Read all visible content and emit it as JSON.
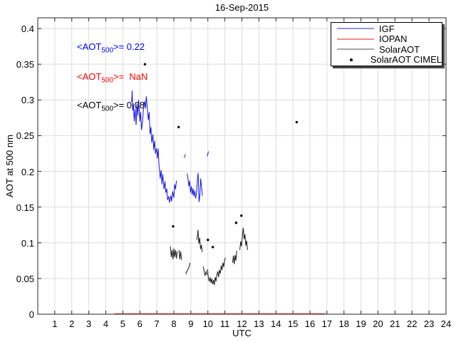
{
  "title": "16-Sep-2015",
  "xlabel": "UTC",
  "ylabel": "AOT at 500 nm",
  "annotations": [
    {
      "name": "igf-mean",
      "before": "<AOT",
      "sub": "500",
      "after": ">= 0.22",
      "color": "#0000ff"
    },
    {
      "name": "iopan-mean",
      "before": "<AOT",
      "sub": "500",
      "after": ">=  NaN",
      "color": "#ff0000"
    },
    {
      "name": "solar-mean",
      "before": "<AOT",
      "sub": "500",
      "after": ">= 0.08",
      "color": "#000000"
    }
  ],
  "legend": {
    "entries": [
      {
        "label": "IGF",
        "type": "line",
        "sample_color": "#9196f0"
      },
      {
        "label": "IOPAN",
        "type": "line",
        "sample_color": "#ef8f8f"
      },
      {
        "label": "SolarAOT",
        "type": "line",
        "sample_color": "#a8a8a8"
      },
      {
        "label": "SolarAOT CIMEL",
        "type": "marker",
        "sample_color": "#000000"
      }
    ]
  },
  "chart_data": {
    "type": "line",
    "title": "16-Sep-2015",
    "xlabel": "UTC",
    "ylabel": "AOT at 500 nm",
    "xlim": [
      0,
      24
    ],
    "ylim": [
      0,
      0.415
    ],
    "grid": true,
    "grid_color": "#dcdcdc",
    "axis_color": "#262626",
    "xticks": [
      1,
      2,
      3,
      4,
      5,
      6,
      7,
      8,
      9,
      10,
      11,
      12,
      13,
      14,
      15,
      16,
      17,
      18,
      19,
      20,
      21,
      22,
      23,
      24
    ],
    "yticks": [
      0,
      0.05,
      0.1,
      0.15,
      0.2,
      0.25,
      0.3,
      0.35,
      0.4
    ],
    "ytick_labels": [
      "0",
      "0.05",
      "0.1",
      "0.15",
      "0.2",
      "0.25",
      "0.3",
      "0.35",
      "0.4"
    ],
    "series": [
      {
        "name": "IGF",
        "type": "line",
        "color": "#1414e6",
        "mean_aot_500": 0.22,
        "segments": [
          [
            [
              5.52,
              0.297
            ],
            [
              5.55,
              0.313
            ],
            [
              5.58,
              0.285
            ],
            [
              5.62,
              0.295
            ],
            [
              5.67,
              0.27
            ],
            [
              5.72,
              0.288
            ],
            [
              5.78,
              0.265
            ],
            [
              5.83,
              0.295
            ],
            [
              5.88,
              0.278
            ],
            [
              5.93,
              0.3
            ],
            [
              6.0,
              0.27
            ],
            [
              6.05,
              0.283
            ],
            [
              6.1,
              0.258
            ],
            [
              6.17,
              0.272
            ],
            [
              6.22,
              0.29
            ],
            [
              6.28,
              0.298
            ],
            [
              6.33,
              0.288
            ],
            [
              6.38,
              0.305
            ],
            [
              6.45,
              0.285
            ],
            [
              6.5,
              0.272
            ],
            [
              6.55,
              0.283
            ],
            [
              6.6,
              0.252
            ],
            [
              6.65,
              0.262
            ],
            [
              6.7,
              0.24
            ],
            [
              6.77,
              0.252
            ],
            [
              6.82,
              0.23
            ],
            [
              6.87,
              0.243
            ],
            [
              6.92,
              0.225
            ],
            [
              6.98,
              0.232
            ],
            [
              7.03,
              0.218
            ],
            [
              7.08,
              0.232
            ],
            [
              7.13,
              0.208
            ],
            [
              7.2,
              0.19
            ],
            [
              7.25,
              0.202
            ],
            [
              7.3,
              0.182
            ],
            [
              7.35,
              0.196
            ],
            [
              7.42,
              0.175
            ],
            [
              7.48,
              0.186
            ],
            [
              7.53,
              0.17
            ],
            [
              7.58,
              0.176
            ],
            [
              7.63,
              0.16
            ],
            [
              7.7,
              0.165
            ],
            [
              7.75,
              0.156
            ],
            [
              7.82,
              0.166
            ],
            [
              7.87,
              0.158
            ],
            [
              7.93,
              0.172
            ],
            [
              8.0,
              0.163
            ],
            [
              8.05,
              0.182
            ],
            [
              8.1,
              0.175
            ],
            [
              8.15,
              0.187
            ]
          ],
          [
            [
              8.78,
              0.197
            ],
            [
              8.83,
              0.19
            ],
            [
              8.88,
              0.179
            ],
            [
              8.93,
              0.187
            ],
            [
              8.98,
              0.17
            ],
            [
              9.03,
              0.179
            ],
            [
              9.08,
              0.167
            ],
            [
              9.13,
              0.176
            ],
            [
              9.18,
              0.165
            ],
            [
              9.23,
              0.173
            ],
            [
              9.28,
              0.162
            ],
            [
              9.33,
              0.17
            ],
            [
              9.38,
              0.186
            ],
            [
              9.43,
              0.198
            ],
            [
              9.48,
              0.157
            ],
            [
              9.53,
              0.166
            ],
            [
              9.58,
              0.19
            ],
            [
              9.63,
              0.177
            ],
            [
              9.68,
              0.166
            ]
          ],
          [
            [
              8.6,
              0.219
            ],
            [
              8.68,
              0.224
            ]
          ],
          [
            [
              9.97,
              0.221
            ],
            [
              10.03,
              0.228
            ]
          ]
        ]
      },
      {
        "name": "IOPAN",
        "type": "line",
        "color": "#c03030",
        "mean_aot_500": "NaN",
        "segments": [
          [
            [
              4.5,
              0.0
            ],
            [
              16.9,
              0.0
            ]
          ]
        ]
      },
      {
        "name": "SolarAOT",
        "type": "line",
        "color": "#1a1a1a",
        "mean_aot_500": 0.08,
        "segments": [
          [
            [
              7.8,
              0.095
            ],
            [
              7.85,
              0.08
            ],
            [
              7.9,
              0.09
            ],
            [
              7.95,
              0.077
            ],
            [
              8.0,
              0.092
            ],
            [
              8.05,
              0.08
            ],
            [
              8.1,
              0.09
            ],
            [
              8.15,
              0.078
            ],
            [
              8.2,
              0.088
            ]
          ],
          [
            [
              8.3,
              0.09
            ],
            [
              8.35,
              0.077
            ],
            [
              8.4,
              0.088
            ],
            [
              8.45,
              0.076
            ]
          ],
          [
            [
              8.7,
              0.056
            ],
            [
              8.8,
              0.062
            ],
            [
              8.9,
              0.066
            ],
            [
              8.95,
              0.072
            ]
          ],
          [
            [
              9.35,
              0.104
            ],
            [
              9.4,
              0.112
            ],
            [
              9.42,
              0.118
            ],
            [
              9.47,
              0.099
            ],
            [
              9.52,
              0.107
            ],
            [
              9.57,
              0.091
            ],
            [
              9.62,
              0.097
            ],
            [
              9.67,
              0.087
            ]
          ],
          [
            [
              9.73,
              0.067
            ],
            [
              9.78,
              0.06
            ],
            [
              9.83,
              0.054
            ],
            [
              9.9,
              0.06
            ],
            [
              9.95,
              0.055
            ]
          ],
          [
            [
              9.98,
              0.063
            ],
            [
              10.03,
              0.05
            ],
            [
              10.08,
              0.046
            ],
            [
              10.13,
              0.052
            ],
            [
              10.18,
              0.044
            ],
            [
              10.23,
              0.05
            ],
            [
              10.28,
              0.042
            ],
            [
              10.33,
              0.048
            ],
            [
              10.38,
              0.041
            ],
            [
              10.43,
              0.052
            ],
            [
              10.48,
              0.046
            ],
            [
              10.53,
              0.055
            ],
            [
              10.58,
              0.06
            ],
            [
              10.63,
              0.052
            ],
            [
              10.68,
              0.062
            ],
            [
              10.73,
              0.057
            ],
            [
              10.78,
              0.068
            ],
            [
              10.83,
              0.062
            ],
            [
              10.88,
              0.072
            ],
            [
              10.93,
              0.066
            ],
            [
              10.98,
              0.075
            ],
            [
              11.03,
              0.079
            ]
          ],
          [
            [
              11.45,
              0.072
            ],
            [
              11.5,
              0.082
            ],
            [
              11.55,
              0.07
            ],
            [
              11.6,
              0.083
            ],
            [
              11.65,
              0.075
            ],
            [
              11.7,
              0.089
            ]
          ],
          [
            [
              11.88,
              0.09
            ],
            [
              11.93,
              0.102
            ],
            [
              11.98,
              0.095
            ],
            [
              12.03,
              0.11
            ],
            [
              12.08,
              0.121
            ],
            [
              12.13,
              0.105
            ],
            [
              12.18,
              0.112
            ],
            [
              12.23,
              0.096
            ],
            [
              12.28,
              0.103
            ],
            [
              12.33,
              0.09
            ]
          ]
        ]
      },
      {
        "name": "SolarAOT CIMEL",
        "type": "scatter",
        "color": "#000000",
        "points": [
          [
            6.3,
            0.35
          ],
          [
            7.96,
            0.123
          ],
          [
            8.28,
            0.262
          ],
          [
            10.0,
            0.104
          ],
          [
            10.29,
            0.094
          ],
          [
            11.66,
            0.128
          ],
          [
            11.97,
            0.138
          ],
          [
            15.22,
            0.269
          ]
        ]
      }
    ]
  }
}
